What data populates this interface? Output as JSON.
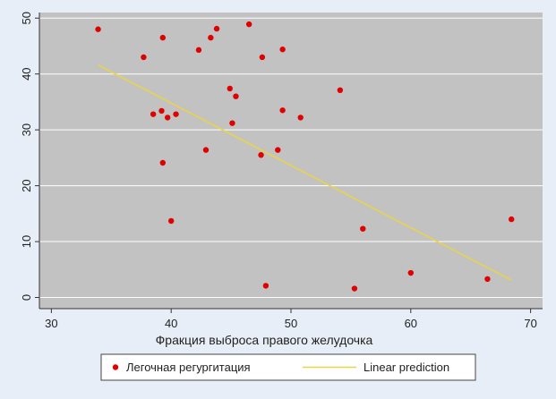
{
  "chart_data": {
    "type": "scatter",
    "xlabel": "Фракция выброса правого желудочка",
    "ylabel": "",
    "xlim": [
      29,
      71
    ],
    "ylim": [
      -2,
      51
    ],
    "xticks": [
      30,
      40,
      50,
      60,
      70
    ],
    "yticks": [
      0,
      10,
      20,
      30,
      40,
      50
    ],
    "grid": true,
    "legend_position": "bottom",
    "series": [
      {
        "name": "Легочная регургитация",
        "kind": "scatter",
        "color": "#e00000",
        "points": [
          [
            33.9,
            48.0
          ],
          [
            37.7,
            43.0
          ],
          [
            38.5,
            32.8
          ],
          [
            39.2,
            33.4
          ],
          [
            39.3,
            46.5
          ],
          [
            39.3,
            24.1
          ],
          [
            39.7,
            32.2
          ],
          [
            40.0,
            13.7
          ],
          [
            40.4,
            32.8
          ],
          [
            42.3,
            44.3
          ],
          [
            42.9,
            26.4
          ],
          [
            43.3,
            46.5
          ],
          [
            43.8,
            48.1
          ],
          [
            44.9,
            37.4
          ],
          [
            45.1,
            31.2
          ],
          [
            45.4,
            36.0
          ],
          [
            46.5,
            48.9
          ],
          [
            47.5,
            25.5
          ],
          [
            47.6,
            43.0
          ],
          [
            47.9,
            2.1
          ],
          [
            48.9,
            26.4
          ],
          [
            49.3,
            44.4
          ],
          [
            49.3,
            33.5
          ],
          [
            50.8,
            32.2
          ],
          [
            54.1,
            37.1
          ],
          [
            55.3,
            1.6
          ],
          [
            56.0,
            12.3
          ],
          [
            60.0,
            4.4
          ],
          [
            66.4,
            3.3
          ],
          [
            68.4,
            14.0
          ]
        ]
      },
      {
        "name": "Linear prediction",
        "kind": "line",
        "color": "#e8d44a",
        "x": [
          33.9,
          68.4
        ],
        "y": [
          41.6,
          3.1
        ]
      }
    ]
  },
  "colors": {
    "plot_background": "#c2c2c2",
    "outer_background": "#e8eef7",
    "grid": "#ffffff"
  }
}
